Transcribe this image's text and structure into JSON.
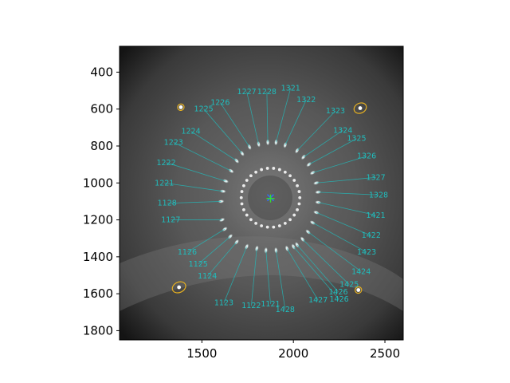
{
  "chart_data": {
    "type": "scatter",
    "title": "",
    "xlabel": "",
    "ylabel": "",
    "xlim": [
      1050,
      2600
    ],
    "ylim": [
      1850,
      260
    ],
    "y_inverted": true,
    "grid": false,
    "x_ticks": [
      1500,
      2000,
      2500
    ],
    "x_tick_labels": [
      "1500",
      "2000",
      "2500"
    ],
    "y_ticks": [
      400,
      600,
      800,
      1000,
      1200,
      1400,
      1600,
      1800
    ],
    "y_tick_labels": [
      "400",
      "600",
      "800",
      "1000",
      "1200",
      "1400",
      "1600",
      "1800"
    ],
    "background_image": "grayscale-star-ring-photo",
    "center_marker": {
      "x": 1875,
      "y": 1080,
      "colors": [
        "#2f6fff",
        "#33dd33"
      ]
    },
    "colors": {
      "annotation": "#1fbfbf",
      "fiducial_ellipse": "#e6b020"
    },
    "fiducials": [
      {
        "x": 1385,
        "y": 590,
        "rx": 18,
        "ry": 17
      },
      {
        "x": 2365,
        "y": 595,
        "rx": 35,
        "ry": 27
      },
      {
        "x": 1375,
        "y": 1565,
        "rx": 38,
        "ry": 28
      },
      {
        "x": 2355,
        "y": 1580,
        "rx": 18,
        "ry": 17
      }
    ],
    "inner_ring": {
      "cx": 1875,
      "cy": 1080,
      "r": 160,
      "count": 30
    },
    "annotations": [
      {
        "label": "1321",
        "spot": [
          1905,
          780
        ],
        "text": [
          1985,
          486
        ]
      },
      {
        "label": "1322",
        "spot": [
          1955,
          795
        ],
        "text": [
          2070,
          550
        ]
      },
      {
        "label": "1323",
        "spot": [
          2020,
          825
        ],
        "text": [
          2230,
          610
        ]
      },
      {
        "label": "1324",
        "spot": [
          2055,
          860
        ],
        "text": [
          2270,
          715
        ]
      },
      {
        "label": "1325",
        "spot": [
          2085,
          900
        ],
        "text": [
          2345,
          760
        ]
      },
      {
        "label": "1326",
        "spot": [
          2105,
          945
        ],
        "text": [
          2400,
          855
        ]
      },
      {
        "label": "1327",
        "spot": [
          2125,
          1000
        ],
        "text": [
          2450,
          970
        ]
      },
      {
        "label": "1328",
        "spot": [
          2135,
          1050
        ],
        "text": [
          2465,
          1065
        ]
      },
      {
        "label": "1421",
        "spot": [
          2135,
          1105
        ],
        "text": [
          2450,
          1175
        ]
      },
      {
        "label": "1422",
        "spot": [
          2125,
          1160
        ],
        "text": [
          2425,
          1285
        ]
      },
      {
        "label": "1423",
        "spot": [
          2105,
          1215
        ],
        "text": [
          2400,
          1375
        ]
      },
      {
        "label": "1424",
        "spot": [
          2080,
          1265
        ],
        "text": [
          2370,
          1480
        ]
      },
      {
        "label": "1425",
        "spot": [
          2050,
          1305
        ],
        "text": [
          2305,
          1550
        ]
      },
      {
        "label": "1426",
        "spot": [
          2020,
          1335
        ],
        "text": [
          2245,
          1590
        ]
      },
      {
        "label": "1426",
        "spot": [
          2000,
          1345
        ],
        "text": [
          2250,
          1630
        ]
      },
      {
        "label": "1427",
        "spot": [
          1965,
          1355
        ],
        "text": [
          2135,
          1635
        ]
      },
      {
        "label": "1428",
        "spot": [
          1905,
          1365
        ],
        "text": [
          1955,
          1685
        ]
      },
      {
        "label": "1121",
        "spot": [
          1850,
          1365
        ],
        "text": [
          1875,
          1655
        ]
      },
      {
        "label": "1122",
        "spot": [
          1800,
          1355
        ],
        "text": [
          1770,
          1665
        ]
      },
      {
        "label": "1123",
        "spot": [
          1745,
          1345
        ],
        "text": [
          1620,
          1650
        ]
      },
      {
        "label": "1124",
        "spot": [
          1690,
          1320
        ],
        "text": [
          1530,
          1505
        ]
      },
      {
        "label": "1125",
        "spot": [
          1655,
          1290
        ],
        "text": [
          1480,
          1440
        ]
      },
      {
        "label": "1126",
        "spot": [
          1625,
          1250
        ],
        "text": [
          1420,
          1375
        ]
      },
      {
        "label": "1127",
        "spot": [
          1610,
          1200
        ],
        "text": [
          1330,
          1200
        ]
      },
      {
        "label": "1128",
        "spot": [
          1605,
          1100
        ],
        "text": [
          1310,
          1110
        ]
      },
      {
        "label": "1221",
        "spot": [
          1615,
          1045
        ],
        "text": [
          1295,
          1000
        ]
      },
      {
        "label": "1222",
        "spot": [
          1630,
          990
        ],
        "text": [
          1305,
          890
        ]
      },
      {
        "label": "1223",
        "spot": [
          1660,
          935
        ],
        "text": [
          1345,
          780
        ]
      },
      {
        "label": "1224",
        "spot": [
          1690,
          880
        ],
        "text": [
          1440,
          720
        ]
      },
      {
        "label": "1225",
        "spot": [
          1720,
          840
        ],
        "text": [
          1510,
          600
        ]
      },
      {
        "label": "1226",
        "spot": [
          1760,
          805
        ],
        "text": [
          1600,
          565
        ]
      },
      {
        "label": "1227",
        "spot": [
          1810,
          790
        ],
        "text": [
          1745,
          506
        ]
      },
      {
        "label": "1228",
        "spot": [
          1860,
          780
        ],
        "text": [
          1855,
          506
        ]
      }
    ]
  }
}
